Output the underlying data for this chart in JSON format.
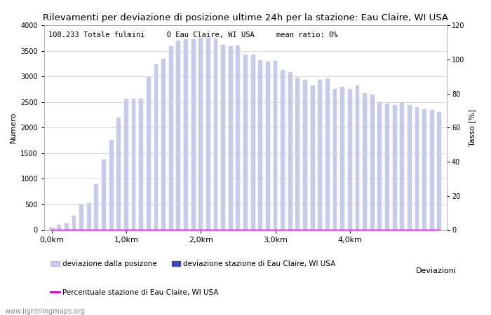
{
  "title": "Rilevamenti per deviazione di posizione ultime 24h per la stazione: Eau Claire, WI USA",
  "ylabel_left": "Numero",
  "ylabel_right": "Tasso [%]",
  "xlabel": "Deviazioni",
  "annotation": "108.233 Totale fulmini     0 Eau Claire, WI USA     mean ratio: 0%",
  "watermark": "www.lightningmaps.org",
  "bar_color_light": "#c8caec",
  "bar_color_dark": "#4444bb",
  "line_color": "#cc00cc",
  "bar_width": 0.55,
  "ylim_left": [
    0,
    4000
  ],
  "ylim_right": [
    0,
    120
  ],
  "xtick_labels": [
    "0,0km",
    "1,0km",
    "2,0km",
    "3,0km",
    "4,0km"
  ],
  "xtick_positions": [
    0,
    10,
    20,
    30,
    40
  ],
  "legend_label_light": "deviazione dalla posizone",
  "legend_label_dark": "deviazione stazione di Eau Claire, WI USA",
  "legend_label_line": "Percentuale stazione di Eau Claire, WI USA",
  "bar_values": [
    50,
    100,
    130,
    280,
    500,
    530,
    890,
    1380,
    1760,
    2190,
    2570,
    2570,
    2560,
    2990,
    3230,
    3340,
    3590,
    3700,
    3720,
    3720,
    3750,
    3760,
    3740,
    3620,
    3590,
    3610,
    3430,
    3430,
    3310,
    3290,
    3300,
    3120,
    3090,
    2970,
    2940,
    2820,
    2940,
    2960,
    2760,
    2800,
    2760,
    2820,
    2680,
    2650,
    2500,
    2470,
    2440,
    2480,
    2440,
    2400,
    2360,
    2350,
    2300
  ],
  "dark_bar_values": [
    0,
    0,
    0,
    0,
    0,
    0,
    0,
    0,
    0,
    0,
    0,
    0,
    0,
    0,
    0,
    0,
    0,
    0,
    0,
    0,
    0,
    0,
    0,
    0,
    0,
    0,
    0,
    0,
    0,
    0,
    0,
    0,
    0,
    0,
    0,
    0,
    0,
    0,
    0,
    0,
    0,
    0,
    0,
    0,
    0,
    0,
    0,
    0,
    0,
    0,
    0,
    0,
    0
  ],
  "line_values": [
    0,
    0,
    0,
    0,
    0,
    0,
    0,
    0,
    0,
    0,
    0,
    0,
    0,
    0,
    0,
    0,
    0,
    0,
    0,
    0,
    0,
    0,
    0,
    0,
    0,
    0,
    0,
    0,
    0,
    0,
    0,
    0,
    0,
    0,
    0,
    0,
    0,
    0,
    0,
    0,
    0,
    0,
    0,
    0,
    0,
    0,
    0,
    0,
    0,
    0,
    0,
    0,
    0
  ],
  "n_bars": 53,
  "figsize": [
    7.0,
    4.5
  ],
  "dpi": 100
}
